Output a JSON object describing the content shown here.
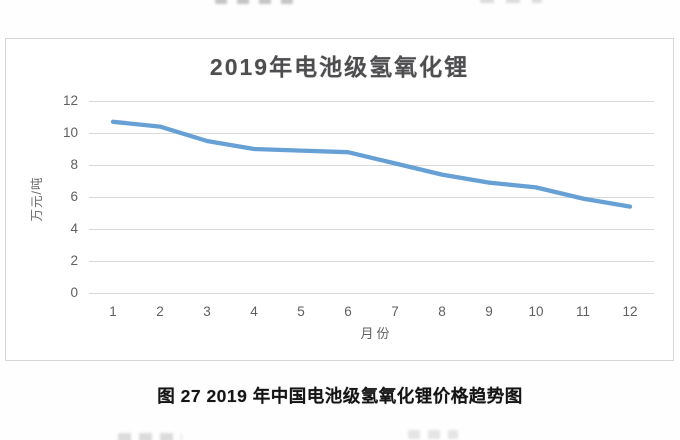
{
  "chart_data": {
    "type": "line",
    "title": "2019年电池级氢氧化锂",
    "xlabel": "月份",
    "ylabel": "万元/吨",
    "categories": [
      "1",
      "2",
      "3",
      "4",
      "5",
      "6",
      "7",
      "8",
      "9",
      "10",
      "11",
      "12"
    ],
    "series": [
      {
        "name": "电池级氢氧化锂价格",
        "values": [
          10.7,
          10.4,
          9.5,
          9.0,
          8.9,
          8.8,
          8.1,
          7.4,
          6.9,
          6.6,
          5.9,
          5.4
        ]
      }
    ],
    "ylim": [
      0,
      12
    ],
    "yticks": [
      0,
      2,
      4,
      6,
      8,
      10,
      12
    ],
    "grid": true,
    "legend": false,
    "line_color": "#5e9bd3",
    "gridline_color": "#d9d9d9",
    "title_color": "#4e4e50",
    "tick_color": "#5f5f61"
  },
  "caption": "图 27 2019 年中国电池级氢氧化锂价格趋势图"
}
